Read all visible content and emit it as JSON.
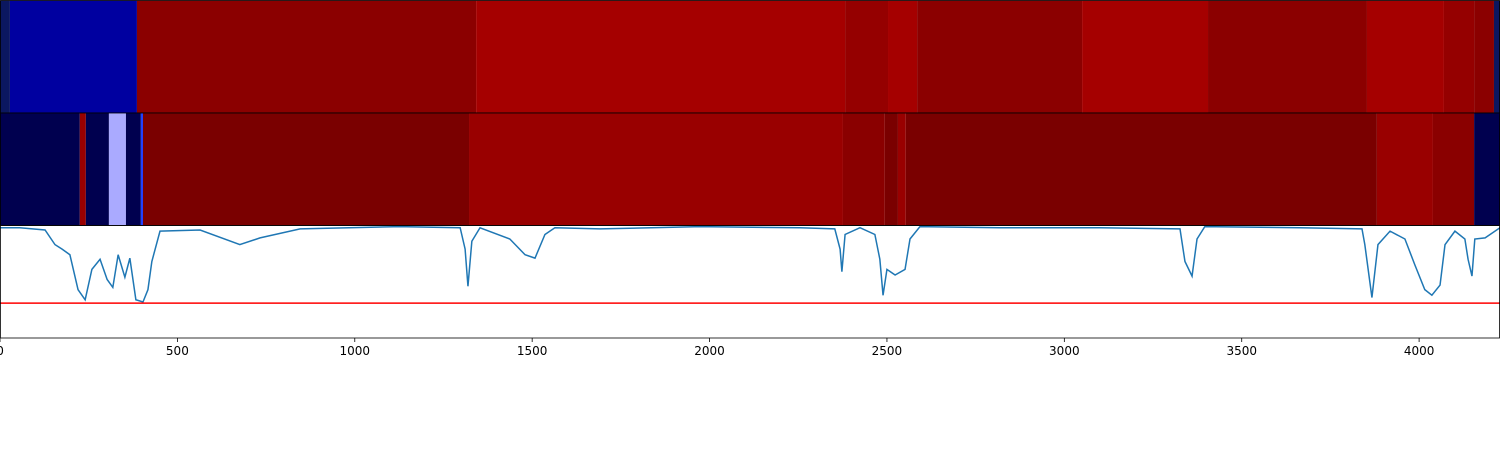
{
  "chart_data": [
    {
      "type": "heatmap",
      "xlim": [
        0,
        4228
      ],
      "segments": [
        {
          "start": 0,
          "end": 28,
          "color": "#0b1760"
        },
        {
          "start": 28,
          "end": 386,
          "color": "#0000a0"
        },
        {
          "start": 386,
          "end": 1342,
          "color": "#8b0000"
        },
        {
          "start": 1342,
          "end": 2382,
          "color": "#a50000"
        },
        {
          "start": 2382,
          "end": 2503,
          "color": "#950000"
        },
        {
          "start": 2503,
          "end": 2585,
          "color": "#a50000"
        },
        {
          "start": 2585,
          "end": 3050,
          "color": "#8b0000"
        },
        {
          "start": 3050,
          "end": 3405,
          "color": "#a50000"
        },
        {
          "start": 3405,
          "end": 3853,
          "color": "#8b0000"
        },
        {
          "start": 3853,
          "end": 4070,
          "color": "#a50000"
        },
        {
          "start": 4070,
          "end": 4155,
          "color": "#950000"
        },
        {
          "start": 4155,
          "end": 4211,
          "color": "#8b0000"
        },
        {
          "start": 4211,
          "end": 4228,
          "color": "#0b1760"
        }
      ]
    },
    {
      "type": "heatmap",
      "xlim": [
        0,
        4228
      ],
      "segments": [
        {
          "start": 0,
          "end": 225,
          "color": "#00004f"
        },
        {
          "start": 225,
          "end": 242,
          "color": "#990000"
        },
        {
          "start": 242,
          "end": 307,
          "color": "#00004f"
        },
        {
          "start": 307,
          "end": 355,
          "color": "#aaaaff"
        },
        {
          "start": 355,
          "end": 397,
          "color": "#00004f"
        },
        {
          "start": 397,
          "end": 403,
          "color": "#2040ff"
        },
        {
          "start": 403,
          "end": 1322,
          "color": "#7a0000"
        },
        {
          "start": 1322,
          "end": 2376,
          "color": "#990000"
        },
        {
          "start": 2376,
          "end": 2494,
          "color": "#8a0000"
        },
        {
          "start": 2494,
          "end": 2531,
          "color": "#7a0000"
        },
        {
          "start": 2531,
          "end": 2553,
          "color": "#990000"
        },
        {
          "start": 2553,
          "end": 3881,
          "color": "#7a0000"
        },
        {
          "start": 3881,
          "end": 4039,
          "color": "#990000"
        },
        {
          "start": 4039,
          "end": 4155,
          "color": "#8a0000"
        },
        {
          "start": 4155,
          "end": 4228,
          "color": "#00004f"
        }
      ]
    },
    {
      "type": "line",
      "xlim": [
        0,
        4228
      ],
      "ylim": [
        0,
        1
      ],
      "color": "#1f77b4",
      "xticks": [
        0,
        500,
        1000,
        1500,
        2000,
        2500,
        3000,
        3500,
        4000
      ],
      "hline": {
        "value": 0.31,
        "color": "#ff0000"
      },
      "x": [
        0,
        56,
        127,
        155,
        175,
        197,
        220,
        240,
        259,
        282,
        302,
        318,
        333,
        352,
        366,
        383,
        403,
        417,
        428,
        451,
        564,
        676,
        733,
        846,
        1127,
        1297,
        1311,
        1319,
        1330,
        1353,
        1437,
        1480,
        1508,
        1536,
        1564,
        1691,
        1973,
        2255,
        2353,
        2368,
        2373,
        2382,
        2424,
        2466,
        2480,
        2489,
        2500,
        2523,
        2551,
        2565,
        2593,
        2818,
        3100,
        3326,
        3340,
        3360,
        3374,
        3396,
        3664,
        3839,
        3847,
        3867,
        3884,
        3918,
        3960,
        3988,
        4016,
        4036,
        4059,
        4073,
        4101,
        4129,
        4138,
        4149,
        4157,
        4186,
        4228
      ],
      "values": [
        0.98,
        0.98,
        0.96,
        0.83,
        0.79,
        0.74,
        0.43,
        0.34,
        0.61,
        0.7,
        0.52,
        0.45,
        0.74,
        0.54,
        0.71,
        0.34,
        0.32,
        0.43,
        0.68,
        0.95,
        0.96,
        0.83,
        0.89,
        0.97,
        0.99,
        0.98,
        0.79,
        0.46,
        0.86,
        0.98,
        0.88,
        0.74,
        0.71,
        0.92,
        0.98,
        0.97,
        0.99,
        0.98,
        0.97,
        0.79,
        0.59,
        0.92,
        0.98,
        0.92,
        0.7,
        0.38,
        0.61,
        0.56,
        0.61,
        0.88,
        0.99,
        0.98,
        0.98,
        0.97,
        0.68,
        0.55,
        0.88,
        0.99,
        0.98,
        0.97,
        0.83,
        0.36,
        0.83,
        0.95,
        0.88,
        0.65,
        0.43,
        0.38,
        0.47,
        0.83,
        0.95,
        0.88,
        0.7,
        0.55,
        0.88,
        0.89,
        0.98
      ]
    }
  ]
}
